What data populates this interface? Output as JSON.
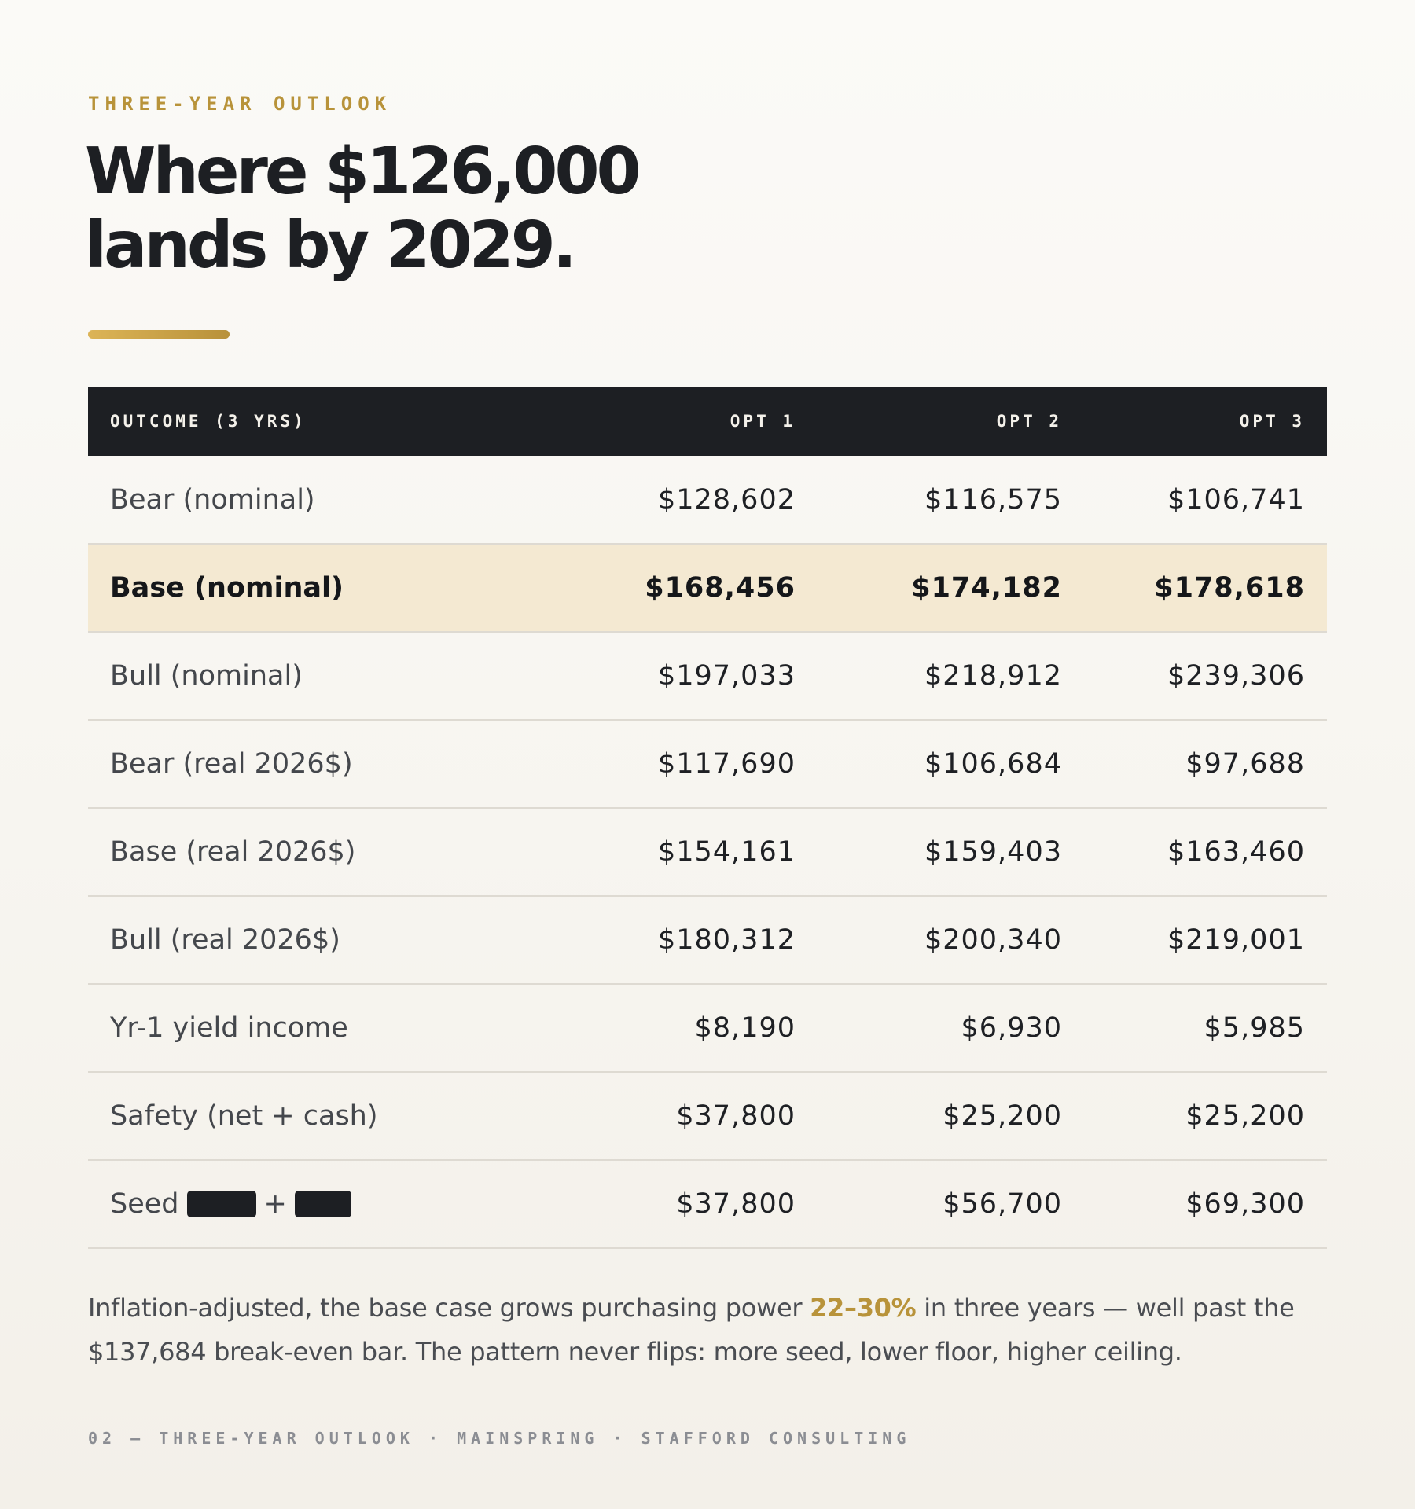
{
  "eyebrow": "THREE-YEAR OUTLOOK",
  "title": {
    "line1": "Where $126,000",
    "line2": "lands by 2029."
  },
  "table": {
    "headers": [
      "OUTCOME (3 YRS)",
      "OPT 1",
      "OPT 2",
      "OPT 3"
    ],
    "rows": [
      {
        "label": "Bear (nominal)",
        "values": [
          "$128,602",
          "$116,575",
          "$106,741"
        ],
        "highlight": false
      },
      {
        "label": "Base (nominal)",
        "values": [
          "$168,456",
          "$174,182",
          "$178,618"
        ],
        "highlight": true
      },
      {
        "label": "Bull (nominal)",
        "values": [
          "$197,033",
          "$218,912",
          "$239,306"
        ],
        "highlight": false
      },
      {
        "label": "Bear (real 2026$)",
        "values": [
          "$117,690",
          "$106,684",
          "$97,688"
        ],
        "highlight": false
      },
      {
        "label": "Base (real 2026$)",
        "values": [
          "$154,161",
          "$159,403",
          "$163,460"
        ],
        "highlight": false
      },
      {
        "label": "Bull (real 2026$)",
        "values": [
          "$180,312",
          "$200,340",
          "$219,001"
        ],
        "highlight": false
      },
      {
        "label": "Yr-1 yield income",
        "values": [
          "$8,190",
          "$6,930",
          "$5,985"
        ],
        "highlight": false
      },
      {
        "label": "Safety (net + cash)",
        "values": [
          "$37,800",
          "$25,200",
          "$25,200"
        ],
        "highlight": false
      },
      {
        "label": "Seed",
        "label_joiner": "+",
        "values": [
          "$37,800",
          "$56,700",
          "$69,300"
        ],
        "highlight": false
      }
    ]
  },
  "summary": {
    "before": "Inflation-adjusted, the base case grows purchasing power ",
    "accent": "22–30%",
    "after": " in three years — well past the $137,684 break-even bar. The pattern never flips: more seed, lower floor, higher ceiling."
  },
  "footer": "02 — THREE-YEAR OUTLOOK · MAINSPRING · STAFFORD CONSULTING",
  "colors": {
    "accent": "#b8933a",
    "header_bg": "#1d1f23",
    "highlight_row": "#f4e9d2"
  }
}
